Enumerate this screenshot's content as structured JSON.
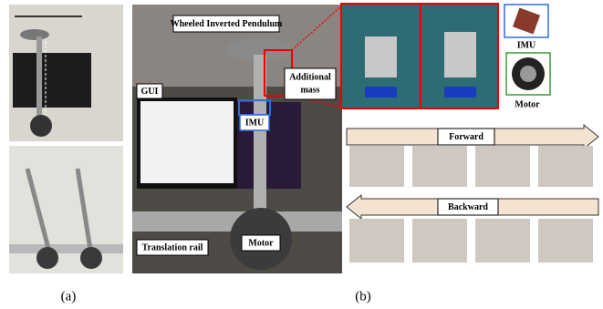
{
  "photo_labels": {
    "pendulum": "Wheeled Inverted Pendulum",
    "mass_line1": "Additional",
    "mass_line2": "mass",
    "gui": "GUI",
    "imu": "IMU",
    "rail": "Translation rail",
    "motor": "Motor"
  },
  "components": {
    "imu": "IMU",
    "motor": "Motor"
  },
  "experiments": {
    "forward": "Forward",
    "backward": "Backward"
  },
  "captions": {
    "a": "(a)",
    "b": "(b)"
  }
}
